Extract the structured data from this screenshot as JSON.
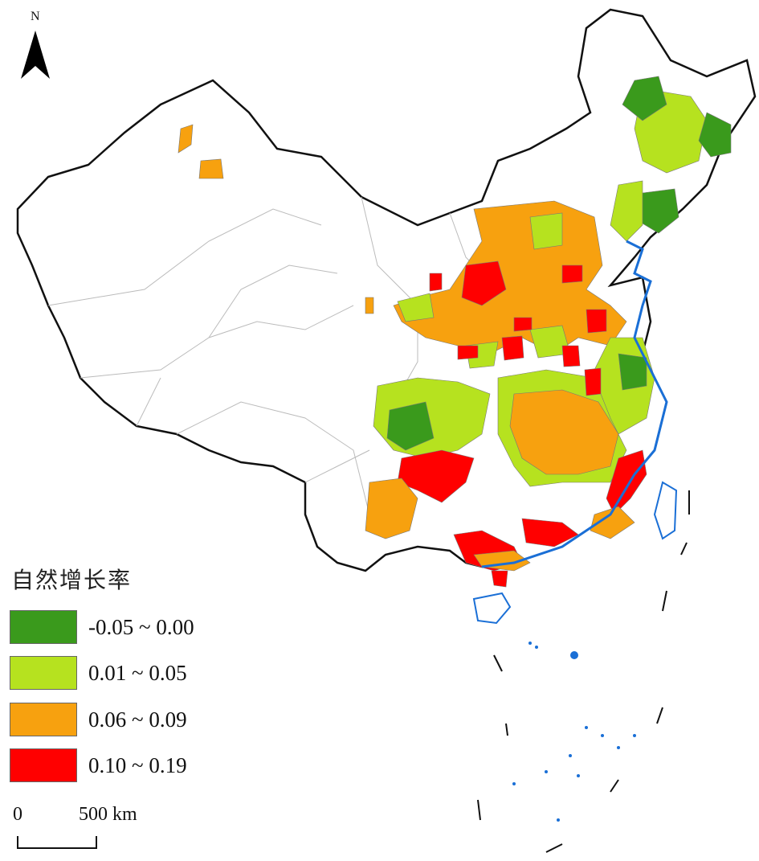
{
  "north_arrow": {
    "label": "N"
  },
  "legend": {
    "title": "自然增长率",
    "items": [
      {
        "label": "-0.05 ~ 0.00",
        "color": "#3a9a1c"
      },
      {
        "label": "0.01 ~ 0.05",
        "color": "#b6e21f"
      },
      {
        "label": "0.06 ~ 0.09",
        "color": "#f7a10f"
      },
      {
        "label": "0.10 ~ 0.19",
        "color": "#ff0000"
      }
    ]
  },
  "scale_bar": {
    "start_label": "0",
    "end_label": "500 km"
  },
  "colors": {
    "boundary": "#111111",
    "internal": "#bbbbbb",
    "coast": "#1a6fd6"
  }
}
